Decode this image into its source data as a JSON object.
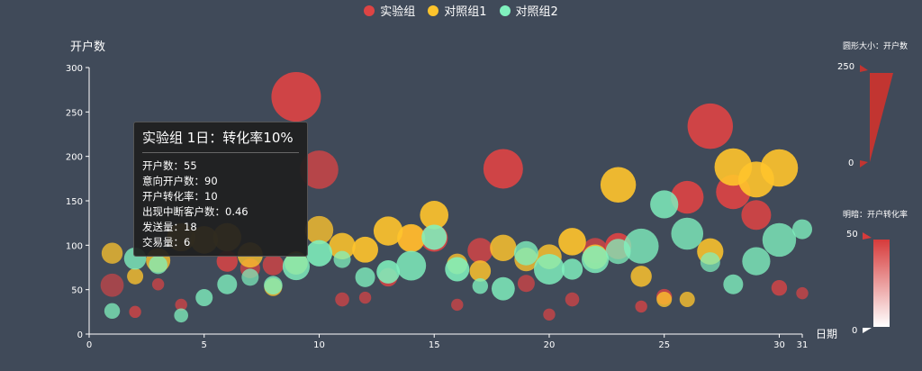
{
  "legend": [
    {
      "name": "实验组",
      "color": "#dd4444"
    },
    {
      "name": "对照组1",
      "color": "#fec42c"
    },
    {
      "name": "对照组2",
      "color": "#80f1be"
    }
  ],
  "tooltip": {
    "title": "实验组 1日：转化率10%",
    "lines": [
      "开户数：55",
      "意向开户数：90",
      "开户转化率：10",
      "出现中断客户数：0.46",
      "发送量：18",
      "交易量：6"
    ]
  },
  "visual_map_size": {
    "label": "圆形大小：开户数",
    "max_label": "250",
    "min_label": "0"
  },
  "visual_map_color": {
    "label": "明暗：开户转化率",
    "max_label": "50",
    "min_label": "0"
  },
  "chart_data": {
    "type": "scatter",
    "title": "",
    "xlabel": "日期",
    "ylabel": "开户数",
    "xlim": [
      0,
      31
    ],
    "ylim": [
      0,
      300
    ],
    "x_ticks": [
      0,
      5,
      10,
      15,
      20,
      25,
      30,
      31
    ],
    "y_ticks": [
      0,
      50,
      100,
      150,
      200,
      250,
      300
    ],
    "series": [
      {
        "name": "实验组",
        "color": "#dd4444",
        "points": [
          {
            "x": 1,
            "y": 55,
            "size": 55,
            "rate": 10
          },
          {
            "x": 2,
            "y": 25,
            "size": 15,
            "rate": 25
          },
          {
            "x": 3,
            "y": 56,
            "size": 15,
            "rate": 20
          },
          {
            "x": 4,
            "y": 33,
            "size": 15,
            "rate": 20
          },
          {
            "x": 6,
            "y": 82,
            "size": 45,
            "rate": 35
          },
          {
            "x": 7,
            "y": 74,
            "size": 40,
            "rate": 20
          },
          {
            "x": 8,
            "y": 78,
            "size": 45,
            "rate": 25
          },
          {
            "x": 9,
            "y": 267,
            "size": 250,
            "rate": 45
          },
          {
            "x": 10,
            "y": 185,
            "size": 150,
            "rate": 25
          },
          {
            "x": 11,
            "y": 39,
            "size": 20,
            "rate": 20
          },
          {
            "x": 12,
            "y": 41,
            "size": 15,
            "rate": 20
          },
          {
            "x": 13,
            "y": 64,
            "size": 35,
            "rate": 35
          },
          {
            "x": 14,
            "y": 108,
            "size": 70,
            "rate": 40
          },
          {
            "x": 15,
            "y": 108,
            "size": 75,
            "rate": 45
          },
          {
            "x": 16,
            "y": 33,
            "size": 15,
            "rate": 20
          },
          {
            "x": 17,
            "y": 94,
            "size": 65,
            "rate": 30
          },
          {
            "x": 18,
            "y": 186,
            "size": 160,
            "rate": 45
          },
          {
            "x": 19,
            "y": 57,
            "size": 30,
            "rate": 20
          },
          {
            "x": 20,
            "y": 22,
            "size": 15,
            "rate": 20
          },
          {
            "x": 21,
            "y": 39,
            "size": 20,
            "rate": 20
          },
          {
            "x": 22,
            "y": 94,
            "size": 65,
            "rate": 25
          },
          {
            "x": 23,
            "y": 99,
            "size": 70,
            "rate": 45
          },
          {
            "x": 24,
            "y": 31,
            "size": 15,
            "rate": 25
          },
          {
            "x": 25,
            "y": 42,
            "size": 25,
            "rate": 30
          },
          {
            "x": 26,
            "y": 154,
            "size": 110,
            "rate": 45
          },
          {
            "x": 27,
            "y": 234,
            "size": 210,
            "rate": 45
          },
          {
            "x": 28,
            "y": 160,
            "size": 120,
            "rate": 45
          },
          {
            "x": 29,
            "y": 134,
            "size": 90,
            "rate": 40
          },
          {
            "x": 30,
            "y": 52,
            "size": 25,
            "rate": 30
          },
          {
            "x": 31,
            "y": 46,
            "size": 15,
            "rate": 20
          }
        ]
      },
      {
        "name": "对照组1",
        "color": "#fec42c",
        "points": [
          {
            "x": 1,
            "y": 91,
            "size": 45,
            "rate": 25
          },
          {
            "x": 2,
            "y": 65,
            "size": 27,
            "rate": 30
          },
          {
            "x": 3,
            "y": 83,
            "size": 60,
            "rate": 30
          },
          {
            "x": 4,
            "y": 109,
            "size": 81,
            "rate": 30
          },
          {
            "x": 5,
            "y": 106,
            "size": 77,
            "rate": 30
          },
          {
            "x": 6,
            "y": 109,
            "size": 81,
            "rate": 30
          },
          {
            "x": 7,
            "y": 89,
            "size": 65,
            "rate": 30
          },
          {
            "x": 8,
            "y": 53,
            "size": 33,
            "rate": 30
          },
          {
            "x": 9,
            "y": 80,
            "size": 55,
            "rate": 30
          },
          {
            "x": 10,
            "y": 117,
            "size": 81,
            "rate": 30
          },
          {
            "x": 11,
            "y": 99,
            "size": 71,
            "rate": 40
          },
          {
            "x": 12,
            "y": 95,
            "size": 69,
            "rate": 45
          },
          {
            "x": 13,
            "y": 116,
            "size": 87,
            "rate": 45
          },
          {
            "x": 14,
            "y": 108,
            "size": 80,
            "rate": 40
          },
          {
            "x": 15,
            "y": 134,
            "size": 83,
            "rate": 45
          },
          {
            "x": 16,
            "y": 79,
            "size": 43,
            "rate": 30
          },
          {
            "x": 17,
            "y": 71,
            "size": 46,
            "rate": 35
          },
          {
            "x": 18,
            "y": 97,
            "size": 71,
            "rate": 35
          },
          {
            "x": 19,
            "y": 84,
            "size": 57,
            "rate": 30
          },
          {
            "x": 20,
            "y": 87,
            "size": 63,
            "rate": 35
          },
          {
            "x": 21,
            "y": 104,
            "size": 77,
            "rate": 45
          },
          {
            "x": 22,
            "y": 87,
            "size": 62,
            "rate": 35
          },
          {
            "x": 23,
            "y": 168,
            "size": 128,
            "rate": 45
          },
          {
            "x": 24,
            "y": 65,
            "size": 45,
            "rate": 35
          },
          {
            "x": 25,
            "y": 39,
            "size": 24,
            "rate": 30
          },
          {
            "x": 26,
            "y": 39,
            "size": 24,
            "rate": 30
          },
          {
            "x": 27,
            "y": 93,
            "size": 70,
            "rate": 40
          },
          {
            "x": 28,
            "y": 188,
            "size": 143,
            "rate": 45
          },
          {
            "x": 29,
            "y": 174,
            "size": 131,
            "rate": 45
          },
          {
            "x": 30,
            "y": 187,
            "size": 143,
            "rate": 45
          }
        ]
      },
      {
        "name": "对照组2",
        "color": "#80f1be",
        "points": [
          {
            "x": 1,
            "y": 26,
            "size": 25,
            "rate": 25
          },
          {
            "x": 2,
            "y": 85,
            "size": 50,
            "rate": 30
          },
          {
            "x": 3,
            "y": 78,
            "size": 35,
            "rate": 25
          },
          {
            "x": 4,
            "y": 21,
            "size": 20,
            "rate": 25
          },
          {
            "x": 5,
            "y": 41,
            "size": 30,
            "rate": 30
          },
          {
            "x": 6,
            "y": 56,
            "size": 40,
            "rate": 30
          },
          {
            "x": 7,
            "y": 64,
            "size": 30,
            "rate": 20
          },
          {
            "x": 8,
            "y": 55,
            "size": 35,
            "rate": 30
          },
          {
            "x": 9,
            "y": 76,
            "size": 75,
            "rate": 35
          },
          {
            "x": 10,
            "y": 91,
            "size": 70,
            "rate": 40
          },
          {
            "x": 11,
            "y": 84,
            "size": 30,
            "rate": 25
          },
          {
            "x": 12,
            "y": 64,
            "size": 40,
            "rate": 30
          },
          {
            "x": 13,
            "y": 70,
            "size": 55,
            "rate": 40
          },
          {
            "x": 14,
            "y": 77,
            "size": 90,
            "rate": 35
          },
          {
            "x": 15,
            "y": 109,
            "size": 65,
            "rate": 40
          },
          {
            "x": 16,
            "y": 73,
            "size": 60,
            "rate": 40
          },
          {
            "x": 17,
            "y": 54,
            "size": 25,
            "rate": 30
          },
          {
            "x": 18,
            "y": 51,
            "size": 55,
            "rate": 35
          },
          {
            "x": 19,
            "y": 91,
            "size": 60,
            "rate": 30
          },
          {
            "x": 20,
            "y": 73,
            "size": 95,
            "rate": 35
          },
          {
            "x": 21,
            "y": 73,
            "size": 45,
            "rate": 35
          },
          {
            "x": 22,
            "y": 84,
            "size": 75,
            "rate": 35
          },
          {
            "x": 23,
            "y": 93,
            "size": 65,
            "rate": 25
          },
          {
            "x": 24,
            "y": 99,
            "size": 125,
            "rate": 30
          },
          {
            "x": 25,
            "y": 146,
            "size": 80,
            "rate": 35
          },
          {
            "x": 26,
            "y": 113,
            "size": 105,
            "rate": 30
          },
          {
            "x": 27,
            "y": 81,
            "size": 40,
            "rate": 20
          },
          {
            "x": 28,
            "y": 56,
            "size": 40,
            "rate": 30
          },
          {
            "x": 29,
            "y": 82,
            "size": 80,
            "rate": 30
          },
          {
            "x": 30,
            "y": 106,
            "size": 115,
            "rate": 30
          },
          {
            "x": 31,
            "y": 118,
            "size": 40,
            "rate": 30
          }
        ]
      }
    ],
    "visual_map_size_range": [
      0,
      250
    ],
    "visual_map_color_range": [
      0,
      50
    ],
    "legend_position": "top-center",
    "grid": false
  }
}
